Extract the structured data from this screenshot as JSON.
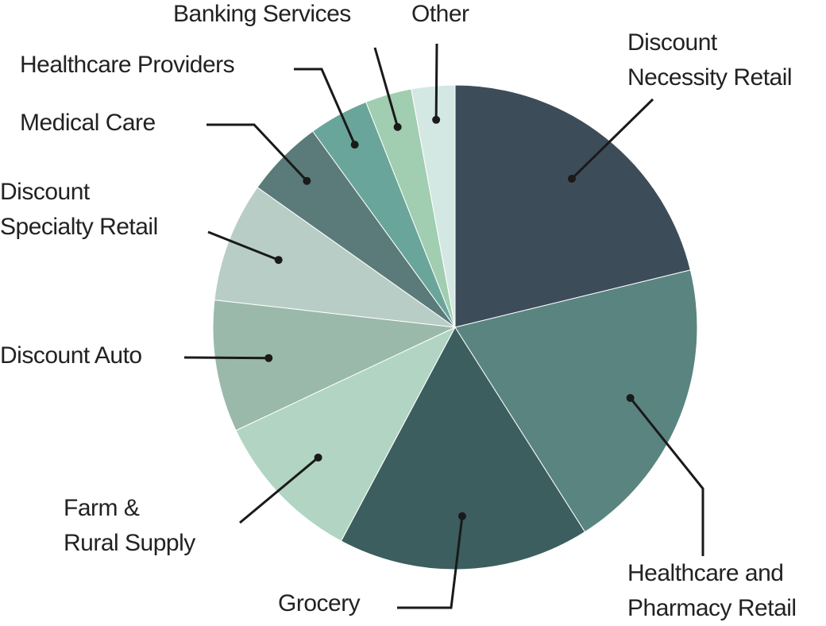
{
  "chart_data": {
    "type": "pie",
    "categories": [
      "Discount\nNecessity Retail",
      "Healthcare and\nPharmacy Retail",
      "Grocery",
      "Farm &\nRural Supply",
      "Discount Auto",
      "Discount\nSpecialty Retail",
      "Medical Care",
      "Healthcare Providers",
      "Banking Services",
      "Other"
    ],
    "values": [
      21.2,
      19.8,
      16.8,
      10.2,
      8.8,
      8.0,
      5.2,
      4.0,
      3.1,
      2.9
    ],
    "colors": [
      "#3d4c59",
      "#5a8480",
      "#3c5e5f",
      "#b2d5c3",
      "#9ab9ab",
      "#b8cdc6",
      "#5a7b79",
      "#6aa59c",
      "#a1cdb0",
      "#d4e8e3"
    ]
  }
}
